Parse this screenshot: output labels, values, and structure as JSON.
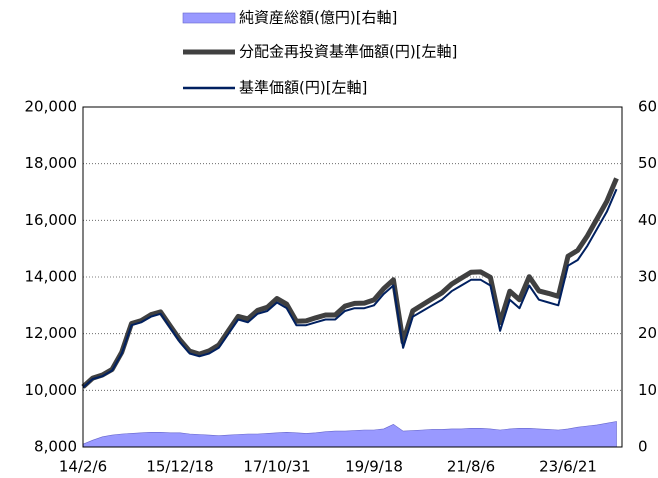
{
  "chart_data": {
    "type": "line",
    "categories": [
      "14/2/6",
      null,
      null,
      null,
      null,
      null,
      null,
      null,
      null,
      null,
      "15/12/18",
      null,
      null,
      null,
      null,
      null,
      null,
      null,
      null,
      null,
      "17/10/31",
      null,
      null,
      null,
      null,
      null,
      null,
      null,
      null,
      null,
      "19/9/18",
      null,
      null,
      null,
      null,
      null,
      null,
      null,
      null,
      null,
      "21/8/6",
      null,
      null,
      null,
      null,
      null,
      null,
      null,
      null,
      null,
      "23/6/21",
      null,
      null,
      null,
      null,
      null
    ],
    "series": [
      {
        "name": "純資産総額(億円)[右軸]",
        "series_type": "area",
        "axis": "y2",
        "color": "#9999ff",
        "values": [
          0.5,
          1.2,
          1.8,
          2.1,
          2.3,
          2.4,
          2.5,
          2.6,
          2.6,
          2.5,
          2.5,
          2.3,
          2.2,
          2.1,
          2.0,
          2.1,
          2.2,
          2.3,
          2.3,
          2.4,
          2.5,
          2.6,
          2.5,
          2.4,
          2.5,
          2.7,
          2.8,
          2.8,
          2.9,
          3.0,
          3.0,
          3.2,
          4.0,
          2.8,
          2.9,
          3.0,
          3.1,
          3.1,
          3.2,
          3.2,
          3.3,
          3.3,
          3.2,
          3.0,
          3.2,
          3.3,
          3.3,
          3.2,
          3.1,
          3.0,
          3.2,
          3.5,
          3.7,
          3.9,
          4.2,
          4.5
        ]
      },
      {
        "name": "分配金再投資基準価額(円)[左軸]",
        "series_type": "line",
        "color": "#404040",
        "values": [
          10120,
          10430,
          10540,
          10740,
          11350,
          12360,
          12460,
          12670,
          12770,
          12270,
          11780,
          11380,
          11280,
          11390,
          11600,
          12110,
          12610,
          12520,
          12820,
          12930,
          13240,
          13040,
          12440,
          12450,
          12560,
          12660,
          12660,
          12970,
          13070,
          13080,
          13190,
          13590,
          13900,
          11700,
          12810,
          13020,
          13230,
          13440,
          13750,
          13960,
          14170,
          14180,
          13990,
          12390,
          13500,
          13200,
          14010,
          13510,
          13420,
          13320,
          14730,
          14940,
          15450,
          16060,
          16670,
          17480
        ]
      },
      {
        "name": "基準価額(円)[左軸]",
        "series_type": "line",
        "color": "#002060",
        "values": [
          10100,
          10400,
          10500,
          10700,
          11300,
          12300,
          12400,
          12600,
          12700,
          12200,
          11700,
          11300,
          11200,
          11300,
          11500,
          12000,
          12500,
          12400,
          12700,
          12800,
          13100,
          12900,
          12300,
          12300,
          12400,
          12500,
          12500,
          12800,
          12900,
          12900,
          13000,
          13400,
          13700,
          11500,
          12600,
          12800,
          13000,
          13200,
          13500,
          13700,
          13900,
          13900,
          13700,
          12100,
          13200,
          12900,
          13700,
          13200,
          13100,
          13000,
          14400,
          14600,
          15100,
          15700,
          16300,
          17100
        ]
      }
    ],
    "ylim": [
      8000,
      20000
    ],
    "yticks": [
      {
        "value": 8000,
        "label": "8,000"
      },
      {
        "value": 10000,
        "label": "10,000"
      },
      {
        "value": 12000,
        "label": "12,000"
      },
      {
        "value": 14000,
        "label": "14,000"
      },
      {
        "value": 16000,
        "label": "16,000"
      },
      {
        "value": 18000,
        "label": "18,000"
      },
      {
        "value": 20000,
        "label": "20,000"
      }
    ],
    "y2lim": [
      0,
      60
    ],
    "y2ticks": [
      0,
      10,
      20,
      30,
      40,
      50,
      60
    ],
    "grid": true
  }
}
